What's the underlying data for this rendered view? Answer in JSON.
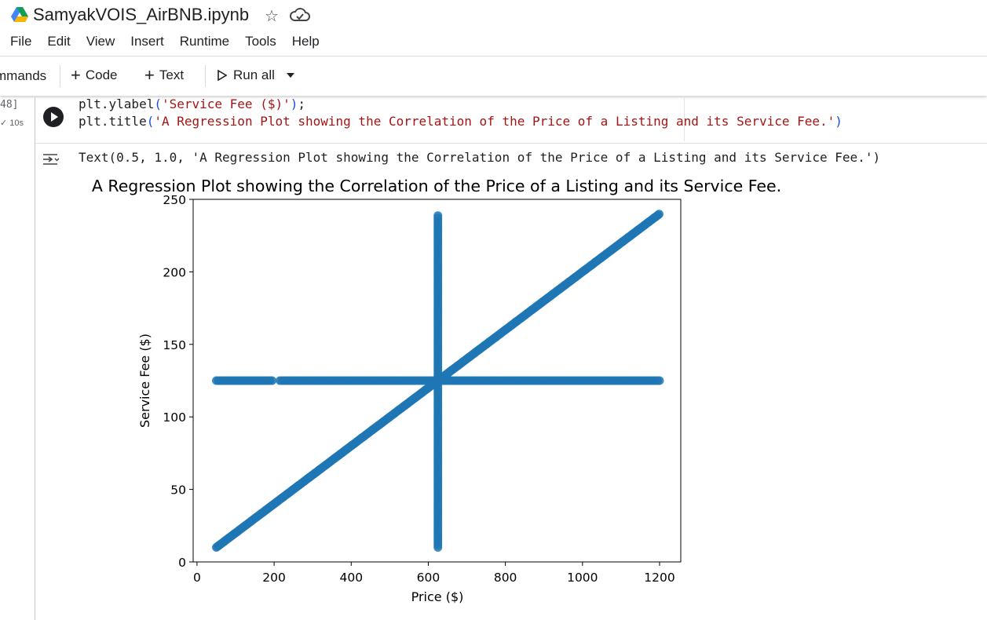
{
  "notebook": {
    "title": "SamyakVOIS_AirBNB.ipynb"
  },
  "menu": [
    "File",
    "Edit",
    "View",
    "Insert",
    "Runtime",
    "Tools",
    "Help"
  ],
  "toolbar": {
    "commands_label": "mmands",
    "code_label": "Code",
    "text_label": "Text",
    "run_all_label": "Run all"
  },
  "cell": {
    "exec_count": "48]",
    "exec_time": "✓ 10s",
    "code_lines": [
      "plt.ylabel('Service Fee ($)');",
      "plt.title('A Regression Plot showing the Correlation of the Price of a Listing and its Service Fee.')"
    ],
    "output_text": "Text(0.5, 1.0, 'A Regression Plot showing the Correlation of the Price of a Listing and its Service Fee.')"
  },
  "colors": {
    "point": "#1f77b4",
    "run_button": "#202124",
    "string": "#a31515"
  },
  "icons": {
    "logo": "google-drive-icon",
    "star": "star-icon",
    "cloud": "cloud-icon",
    "output": "output-toggle-icon"
  },
  "chart_data": {
    "type": "scatter",
    "title": "A Regression Plot showing the Correlation of the Price of a Listing and its Service Fee.",
    "xlabel": "Price ($)",
    "ylabel": "Service Fee ($)",
    "xlim": [
      -10,
      1255
    ],
    "ylim": [
      0,
      250
    ],
    "xticks": [
      0,
      200,
      400,
      600,
      800,
      1000,
      1200
    ],
    "yticks": [
      0,
      50,
      100,
      150,
      200,
      250
    ],
    "series": [
      {
        "description": "diagonal",
        "x_range": [
          50,
          1200
        ],
        "y_range": [
          10,
          240
        ],
        "relation": "y = 0.2x"
      },
      {
        "description": "vertical",
        "x": 625,
        "y_range": [
          10,
          240
        ]
      },
      {
        "description": "horizontal",
        "y": 125,
        "x_range": [
          50,
          1200
        ]
      }
    ],
    "grid": false
  }
}
